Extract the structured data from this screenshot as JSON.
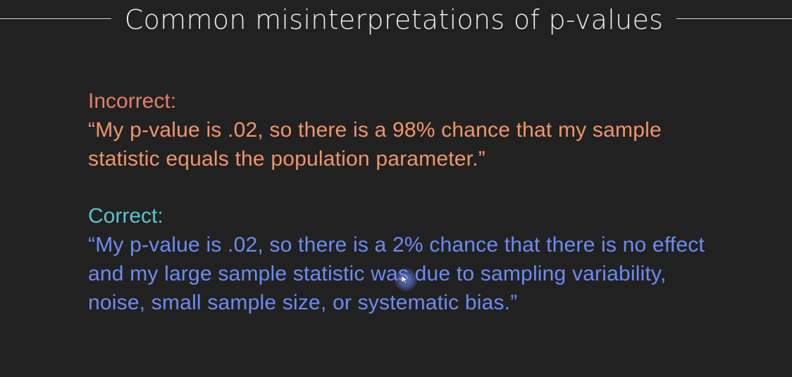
{
  "slide": {
    "title": "Common misinterpretations of p-values"
  },
  "incorrect": {
    "label": "Incorrect:",
    "text": "“My p-value is .02, so there is a 98% chance that my sample statistic equals the population parameter.”"
  },
  "correct": {
    "label": "Correct:",
    "text": "“My p-value is .02, so there is a 2% chance that there is no effect and my large sample statistic was due to sampling variability, noise, small sample size, or systematic bias.”"
  },
  "colors": {
    "background": "#212121",
    "incorrect_label": "#e57f6c",
    "incorrect_text": "#f0956b",
    "correct_label": "#5ec4cf",
    "correct_text": "#6d8cf2"
  },
  "icons": {
    "cursor": "mouse-pointer-icon"
  }
}
